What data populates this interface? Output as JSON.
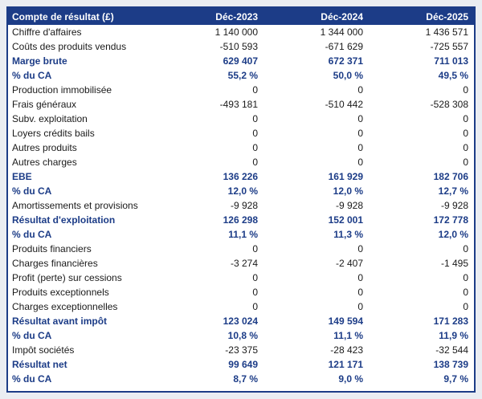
{
  "table": {
    "title": "Compte de résultat (£)",
    "header": {
      "label": "Compte de résultat (£)",
      "columns": [
        "Déc-2023",
        "Déc-2024",
        "Déc-2025"
      ]
    },
    "rows": [
      {
        "label": "Chiffre d'affaires",
        "values": [
          "1 140 000",
          "1 344 000",
          "1 436 571"
        ],
        "bold": false
      },
      {
        "label": "Coûts des produits vendus",
        "values": [
          "-510 593",
          "-671 629",
          "-725 557"
        ],
        "bold": false
      },
      {
        "label": "Marge brute",
        "values": [
          "629 407",
          "672 371",
          "711 013"
        ],
        "bold": true
      },
      {
        "label": "% du CA",
        "values": [
          "55,2 %",
          "50,0 %",
          "49,5 %"
        ],
        "bold": true
      },
      {
        "label": "Production immobilisée",
        "values": [
          "0",
          "0",
          "0"
        ],
        "bold": false
      },
      {
        "label": "Frais généraux",
        "values": [
          "-493 181",
          "-510 442",
          "-528 308"
        ],
        "bold": false
      },
      {
        "label": "Subv. exploitation",
        "values": [
          "0",
          "0",
          "0"
        ],
        "bold": false
      },
      {
        "label": "Loyers crédits bails",
        "values": [
          "0",
          "0",
          "0"
        ],
        "bold": false
      },
      {
        "label": "Autres produits",
        "values": [
          "0",
          "0",
          "0"
        ],
        "bold": false
      },
      {
        "label": "Autres charges",
        "values": [
          "0",
          "0",
          "0"
        ],
        "bold": false
      },
      {
        "label": "EBE",
        "values": [
          "136 226",
          "161 929",
          "182 706"
        ],
        "bold": true
      },
      {
        "label": "% du CA",
        "values": [
          "12,0 %",
          "12,0 %",
          "12,7 %"
        ],
        "bold": true
      },
      {
        "label": "Amortissements et provisions",
        "values": [
          "-9 928",
          "-9 928",
          "-9 928"
        ],
        "bold": false
      },
      {
        "label": "Résultat d'exploitation",
        "values": [
          "126 298",
          "152 001",
          "172 778"
        ],
        "bold": true
      },
      {
        "label": "% du CA",
        "values": [
          "11,1 %",
          "11,3 %",
          "12,0 %"
        ],
        "bold": true
      },
      {
        "label": "Produits financiers",
        "values": [
          "0",
          "0",
          "0"
        ],
        "bold": false
      },
      {
        "label": "Charges financières",
        "values": [
          "-3 274",
          "-2 407",
          "-1 495"
        ],
        "bold": false
      },
      {
        "label": "Profit (perte) sur cessions",
        "values": [
          "0",
          "0",
          "0"
        ],
        "bold": false
      },
      {
        "label": "Produits exceptionnels",
        "values": [
          "0",
          "0",
          "0"
        ],
        "bold": false
      },
      {
        "label": "Charges exceptionnelles",
        "values": [
          "0",
          "0",
          "0"
        ],
        "bold": false
      },
      {
        "label": "Résultat avant impôt",
        "values": [
          "123 024",
          "149 594",
          "171 283"
        ],
        "bold": true
      },
      {
        "label": "% du CA",
        "values": [
          "10,8 %",
          "11,1 %",
          "11,9 %"
        ],
        "bold": true
      },
      {
        "label": "Impôt sociétés",
        "values": [
          "-23 375",
          "-28 423",
          "-32 544"
        ],
        "bold": false
      },
      {
        "label": "Résultat net",
        "values": [
          "99 649",
          "121 171",
          "138 739"
        ],
        "bold": true
      },
      {
        "label": "% du CA",
        "values": [
          "8,7 %",
          "9,0 %",
          "9,7 %"
        ],
        "bold": true
      }
    ],
    "colors": {
      "accent_navy": "#1c3c87",
      "page_background": "#eaedf2",
      "row_background": "#ffffff",
      "row_text": "#1a1a1a",
      "header_text": "#ffffff"
    }
  }
}
